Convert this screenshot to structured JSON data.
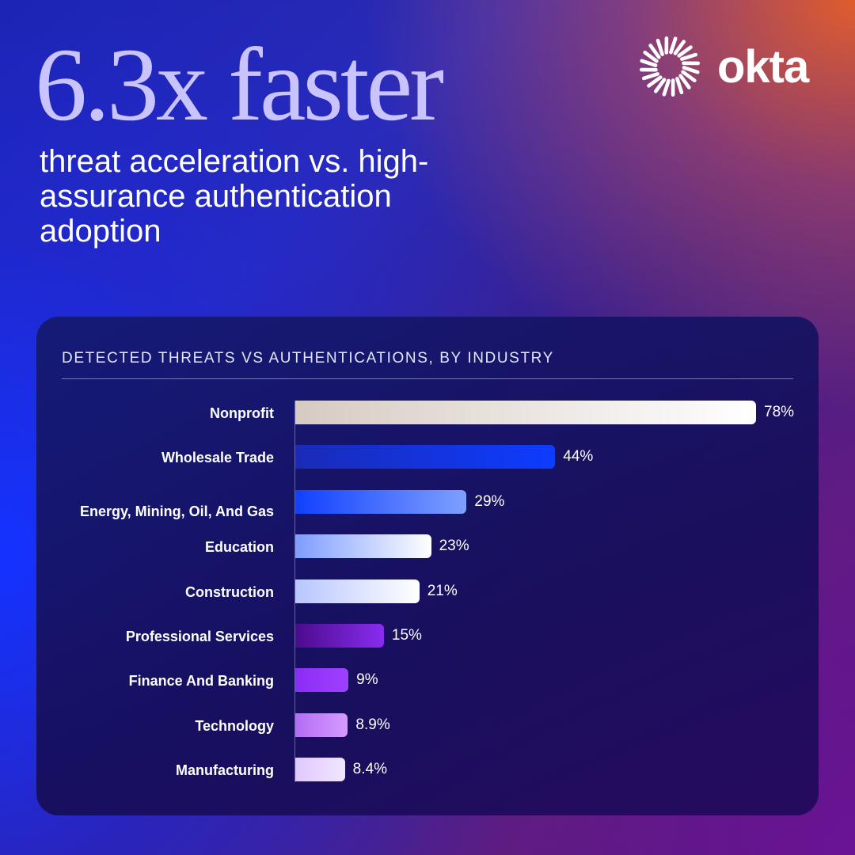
{
  "headline": "6.3x faster",
  "subheadline": "threat acceleration vs. high-assurance authentication adoption",
  "brand": {
    "name": "okta",
    "icon": "okta-sunburst-logo"
  },
  "chart_data": {
    "type": "bar",
    "orientation": "horizontal",
    "title": "DETECTED THREATS VS AUTHENTICATIONS, BY INDUSTRY",
    "xlim": [
      0,
      78
    ],
    "categories": [
      "Nonprofit",
      "Wholesale Trade",
      "Energy, Mining, Oil, And Gas",
      "Education",
      "Construction",
      "Professional Services",
      "Finance And Banking",
      "Technology",
      "Manufacturing"
    ],
    "values": [
      78,
      44,
      29,
      23,
      21,
      15,
      9,
      8.9,
      8.4
    ],
    "value_labels": [
      "78%",
      "44%",
      "29%",
      "23%",
      "21%",
      "15%",
      "9%",
      "8.9%",
      "8.4%"
    ],
    "bar_colors": [
      [
        "#d6cbc2",
        "#ffffff"
      ],
      [
        "#1a2bb8",
        "#0d3cff"
      ],
      [
        "#1040ff",
        "#7fa0ff"
      ],
      [
        "#7e9cff",
        "#ffffff"
      ],
      [
        "#b8c6ff",
        "#ffffff"
      ],
      [
        "#4a0c8c",
        "#8a2cf0"
      ],
      [
        "#8a2cf5",
        "#a040ff"
      ],
      [
        "#b46cf5",
        "#d49cff"
      ],
      [
        "#e0c8ff",
        "#f0e6ff"
      ]
    ]
  }
}
